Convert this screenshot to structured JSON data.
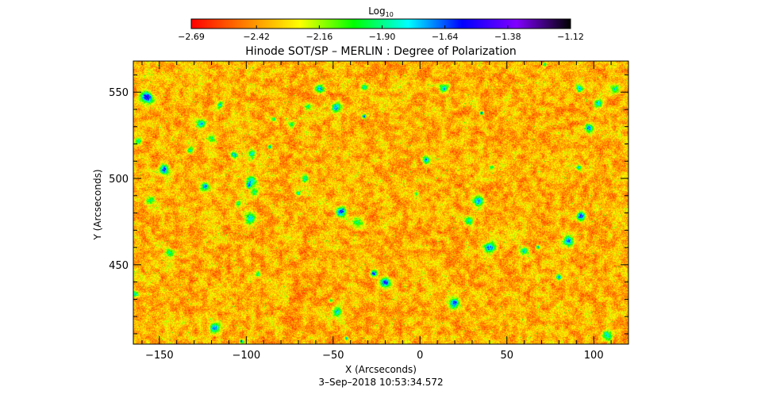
{
  "chart_data": {
    "type": "heatmap",
    "title": "Hinode SOT/SP – MERLIN : Degree of Polarization",
    "xlabel": "X (Arcseconds)",
    "ylabel": "Y (Arcseconds)",
    "xlim": [
      -165,
      120
    ],
    "ylim": [
      404,
      568
    ],
    "x_ticks": [
      -150,
      -100,
      -50,
      0,
      50,
      100
    ],
    "x_tick_labels": [
      "−150",
      "−100",
      "−50",
      "0",
      "50",
      "100"
    ],
    "y_ticks": [
      450,
      500,
      550
    ],
    "y_tick_labels": [
      "450",
      "500",
      "550"
    ],
    "colorbar": {
      "label_base": "Log",
      "label_sub": "10",
      "range": [
        -2.69,
        -1.12
      ],
      "ticks": [
        -2.69,
        -2.42,
        -2.16,
        -1.9,
        -1.64,
        -1.38,
        -1.12
      ],
      "tick_labels": [
        "−2.69",
        "−2.42",
        "−2.16",
        "−1.90",
        "−1.64",
        "−1.38",
        "−1.12"
      ],
      "colormap": [
        "#ff0000",
        "#ff8000",
        "#ffff00",
        "#00ff00",
        "#00ffff",
        "#0000ff",
        "#8000ff",
        "#000000"
      ]
    },
    "field_character": "mostly low polarization (red/orange/yellow speckle) with scattered green, cyan and blue patches",
    "timestamp": "3–Sep–2018 10:53:34.572"
  }
}
